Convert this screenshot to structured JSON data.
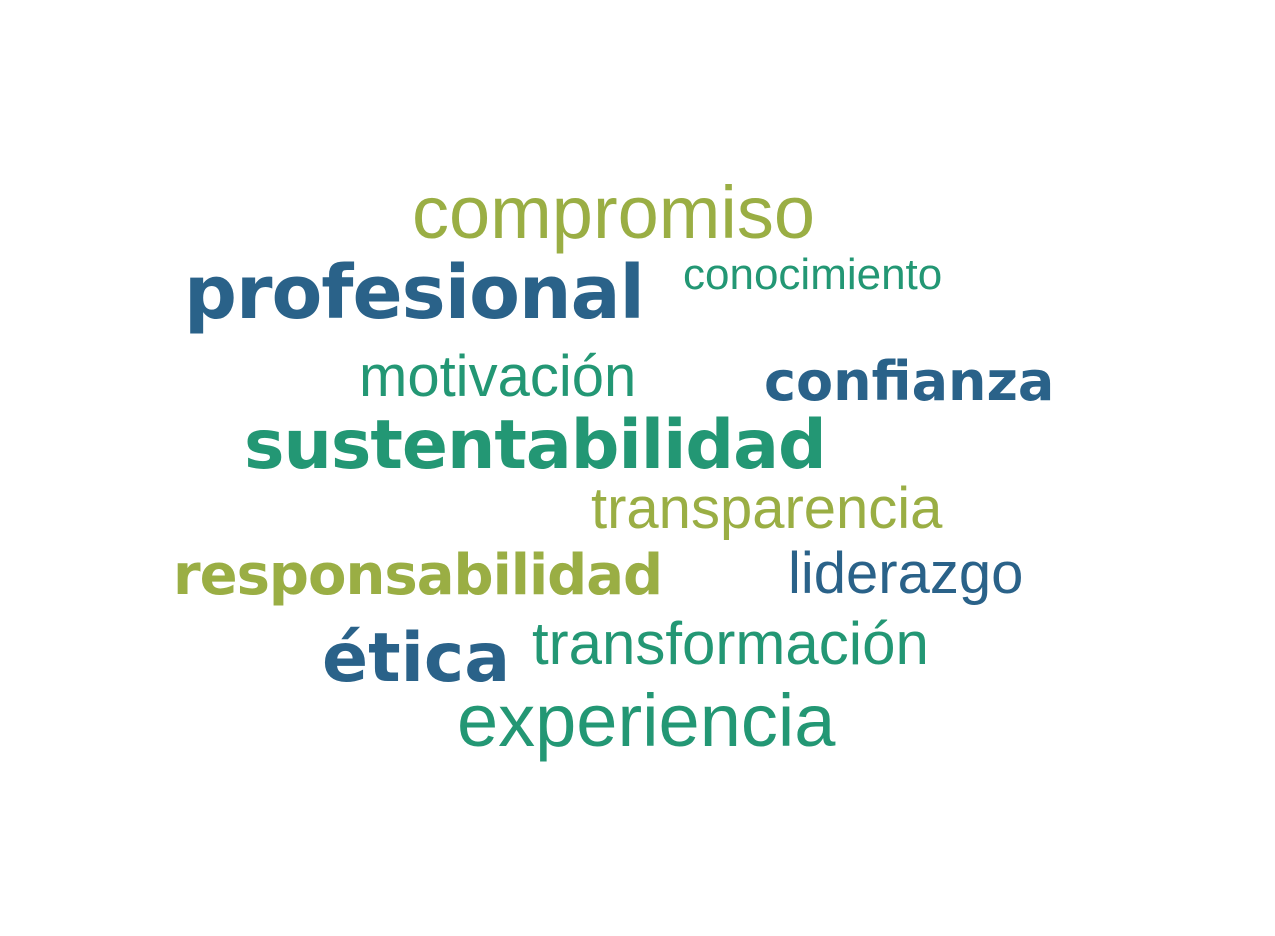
{
  "word_cloud": {
    "words": [
      {
        "text": "compromiso",
        "color": "#9aae44"
      },
      {
        "text": "profesional",
        "color": "#2a6289"
      },
      {
        "text": "conocimiento",
        "color": "#239774"
      },
      {
        "text": "motivación",
        "color": "#239774"
      },
      {
        "text": "confianza",
        "color": "#2a6289"
      },
      {
        "text": "sustentabilidad",
        "color": "#239774"
      },
      {
        "text": "transparencia",
        "color": "#9aae44"
      },
      {
        "text": "responsabilidad",
        "color": "#9aae44"
      },
      {
        "text": "liderazgo",
        "color": "#2a6289"
      },
      {
        "text": "transformación",
        "color": "#239774"
      },
      {
        "text": "ética",
        "color": "#2a6289"
      },
      {
        "text": "experiencia",
        "color": "#239774"
      }
    ]
  },
  "palette": {
    "green": "#9aae44",
    "teal": "#239774",
    "blue": "#2a6289"
  }
}
